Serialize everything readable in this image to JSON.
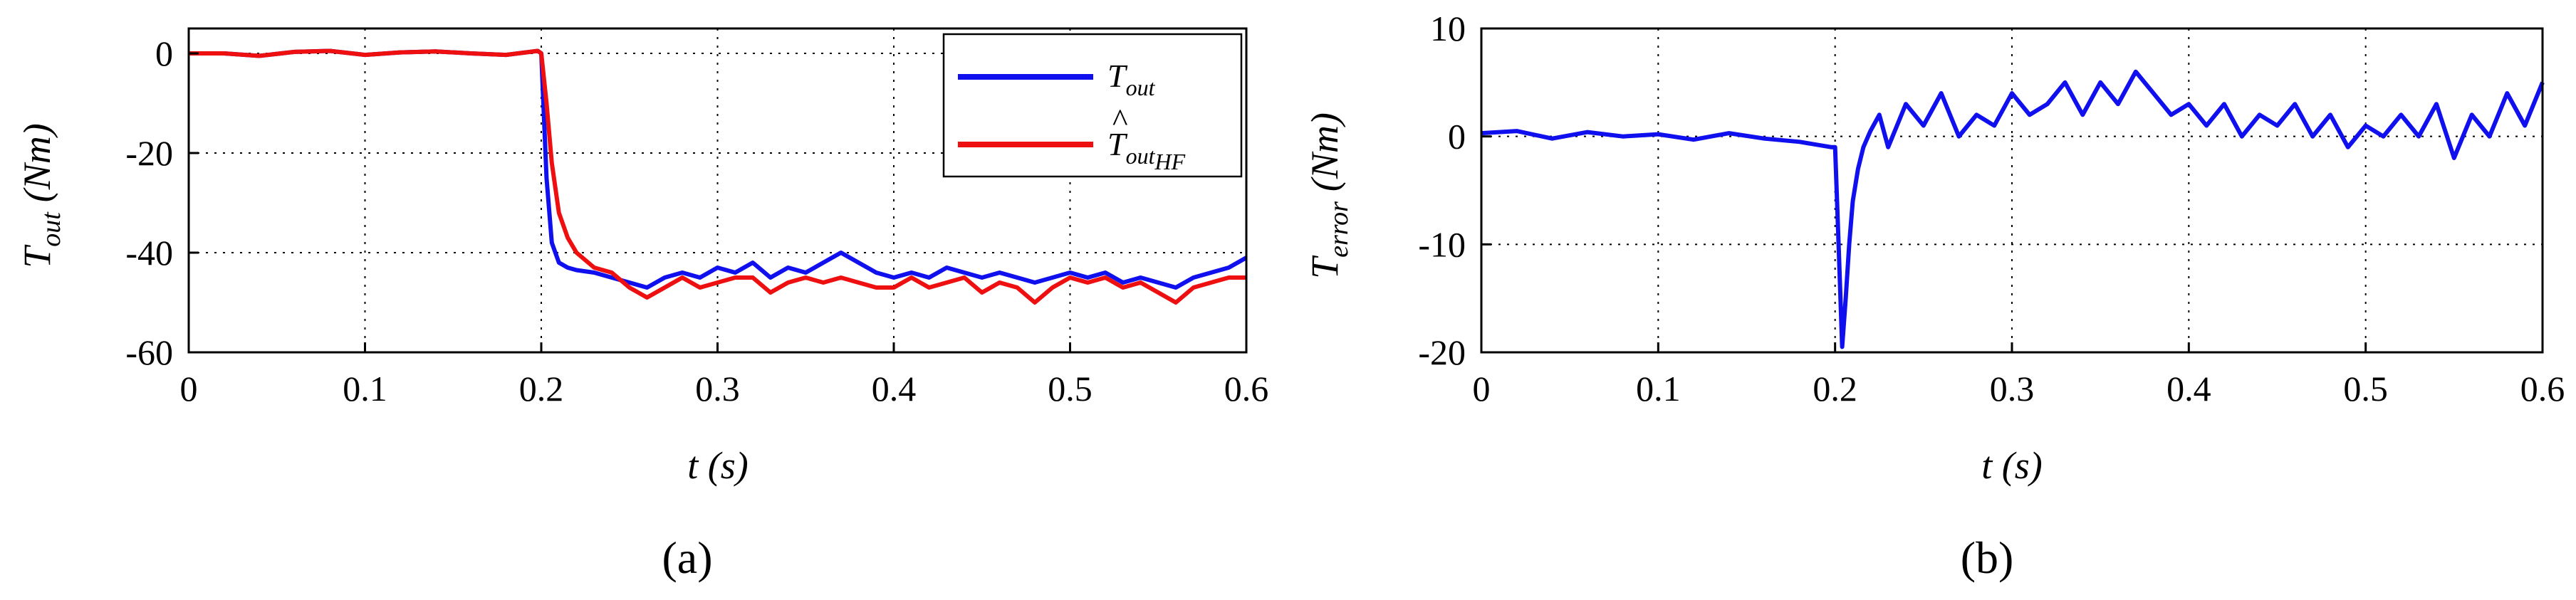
{
  "chart_data": [
    {
      "type": "line",
      "panel_label": "(a)",
      "xlabel": "t (s)",
      "ylabel": {
        "main": "T",
        "sub": "out",
        "unit": "(Nm)"
      },
      "xlim": [
        0,
        0.6
      ],
      "ylim": [
        -60,
        5
      ],
      "x_ticks": [
        0,
        0.1,
        0.2,
        0.3,
        0.4,
        0.5,
        0.6
      ],
      "x_tick_labels": [
        "0",
        "0.1",
        "0.2",
        "0.3",
        "0.4",
        "0.5",
        "0.6"
      ],
      "y_ticks": [
        0,
        -20,
        -40,
        -60
      ],
      "y_tick_labels": [
        "0",
        "-20",
        "-40",
        "-60"
      ],
      "grid": true,
      "legend_position": "top-right",
      "series": [
        {
          "name": "T_out",
          "legend": {
            "main": "T",
            "sub": "out",
            "hat": false
          },
          "color": "#1010ee",
          "x": [
            0,
            0.02,
            0.04,
            0.06,
            0.08,
            0.1,
            0.12,
            0.14,
            0.16,
            0.18,
            0.198,
            0.2,
            0.203,
            0.206,
            0.21,
            0.215,
            0.22,
            0.23,
            0.24,
            0.25,
            0.26,
            0.27,
            0.28,
            0.29,
            0.3,
            0.31,
            0.32,
            0.33,
            0.34,
            0.35,
            0.36,
            0.37,
            0.38,
            0.39,
            0.4,
            0.41,
            0.42,
            0.43,
            0.44,
            0.45,
            0.46,
            0.47,
            0.48,
            0.49,
            0.5,
            0.51,
            0.52,
            0.53,
            0.54,
            0.55,
            0.56,
            0.57,
            0.58,
            0.59,
            0.6
          ],
          "values": [
            0,
            0,
            -0.5,
            0.3,
            0.5,
            -0.3,
            0.2,
            0.4,
            0,
            -0.3,
            0.5,
            0,
            -25,
            -38,
            -42,
            -43,
            -43.5,
            -44,
            -45,
            -46,
            -47,
            -45,
            -44,
            -45,
            -43,
            -44,
            -42,
            -45,
            -43,
            -44,
            -42,
            -40,
            -42,
            -44,
            -45,
            -44,
            -45,
            -43,
            -44,
            -45,
            -44,
            -45,
            -46,
            -45,
            -44,
            -45,
            -44,
            -46,
            -45,
            -46,
            -47,
            -45,
            -44,
            -43,
            -41
          ]
        },
        {
          "name": "T_out_HF_hat",
          "legend": {
            "main": "T",
            "sub": "out",
            "sub2": "HF",
            "hat": true
          },
          "color": "#ee1010",
          "x": [
            0,
            0.02,
            0.04,
            0.06,
            0.08,
            0.1,
            0.12,
            0.14,
            0.16,
            0.18,
            0.198,
            0.2,
            0.203,
            0.206,
            0.21,
            0.215,
            0.22,
            0.23,
            0.24,
            0.25,
            0.26,
            0.27,
            0.28,
            0.29,
            0.3,
            0.31,
            0.32,
            0.33,
            0.34,
            0.35,
            0.36,
            0.37,
            0.38,
            0.39,
            0.4,
            0.41,
            0.42,
            0.43,
            0.44,
            0.45,
            0.46,
            0.47,
            0.48,
            0.49,
            0.5,
            0.51,
            0.52,
            0.53,
            0.54,
            0.55,
            0.56,
            0.57,
            0.58,
            0.59,
            0.6
          ],
          "values": [
            0,
            0,
            -0.5,
            0.3,
            0.5,
            -0.3,
            0.2,
            0.4,
            0,
            -0.3,
            0.5,
            0,
            -10,
            -22,
            -32,
            -37,
            -40,
            -43,
            -44,
            -47,
            -49,
            -47,
            -45,
            -47,
            -46,
            -45,
            -45,
            -48,
            -46,
            -45,
            -46,
            -45,
            -46,
            -47,
            -47,
            -45,
            -47,
            -46,
            -45,
            -48,
            -46,
            -47,
            -50,
            -47,
            -45,
            -46,
            -45,
            -47,
            -46,
            -48,
            -50,
            -47,
            -46,
            -45,
            -45
          ]
        }
      ]
    },
    {
      "type": "line",
      "panel_label": "(b)",
      "xlabel": "t (s)",
      "ylabel": {
        "main": "T",
        "sub": "error",
        "unit": "(Nm)"
      },
      "xlim": [
        0,
        0.6
      ],
      "ylim": [
        -20,
        10
      ],
      "x_ticks": [
        0,
        0.1,
        0.2,
        0.3,
        0.4,
        0.5,
        0.6
      ],
      "x_tick_labels": [
        "0",
        "0.1",
        "0.2",
        "0.3",
        "0.4",
        "0.5",
        "0.6"
      ],
      "y_ticks": [
        10,
        0,
        -10,
        -20
      ],
      "y_tick_labels": [
        "10",
        "0",
        "-10",
        "-20"
      ],
      "grid": true,
      "series": [
        {
          "name": "T_error",
          "color": "#1010ee",
          "x": [
            0,
            0.02,
            0.04,
            0.06,
            0.08,
            0.1,
            0.12,
            0.14,
            0.16,
            0.18,
            0.198,
            0.2,
            0.202,
            0.204,
            0.206,
            0.208,
            0.21,
            0.213,
            0.216,
            0.22,
            0.225,
            0.23,
            0.24,
            0.25,
            0.26,
            0.27,
            0.28,
            0.29,
            0.3,
            0.31,
            0.32,
            0.33,
            0.34,
            0.35,
            0.36,
            0.37,
            0.38,
            0.39,
            0.4,
            0.41,
            0.42,
            0.43,
            0.44,
            0.45,
            0.46,
            0.47,
            0.48,
            0.49,
            0.5,
            0.51,
            0.52,
            0.53,
            0.54,
            0.55,
            0.56,
            0.57,
            0.58,
            0.59,
            0.6
          ],
          "values": [
            0.3,
            0.5,
            -0.2,
            0.4,
            0,
            0.2,
            -0.3,
            0.3,
            -0.2,
            -0.5,
            -1,
            -1,
            -10,
            -19.5,
            -15,
            -10,
            -6,
            -3,
            -1,
            0.5,
            2,
            -1,
            3,
            1,
            4,
            0,
            2,
            1,
            4,
            2,
            3,
            5,
            2,
            5,
            3,
            6,
            4,
            2,
            3,
            1,
            3,
            0,
            2,
            1,
            3,
            0,
            2,
            -1,
            1,
            0,
            2,
            0,
            3,
            -2,
            2,
            0,
            4,
            1,
            5
          ]
        }
      ]
    }
  ]
}
